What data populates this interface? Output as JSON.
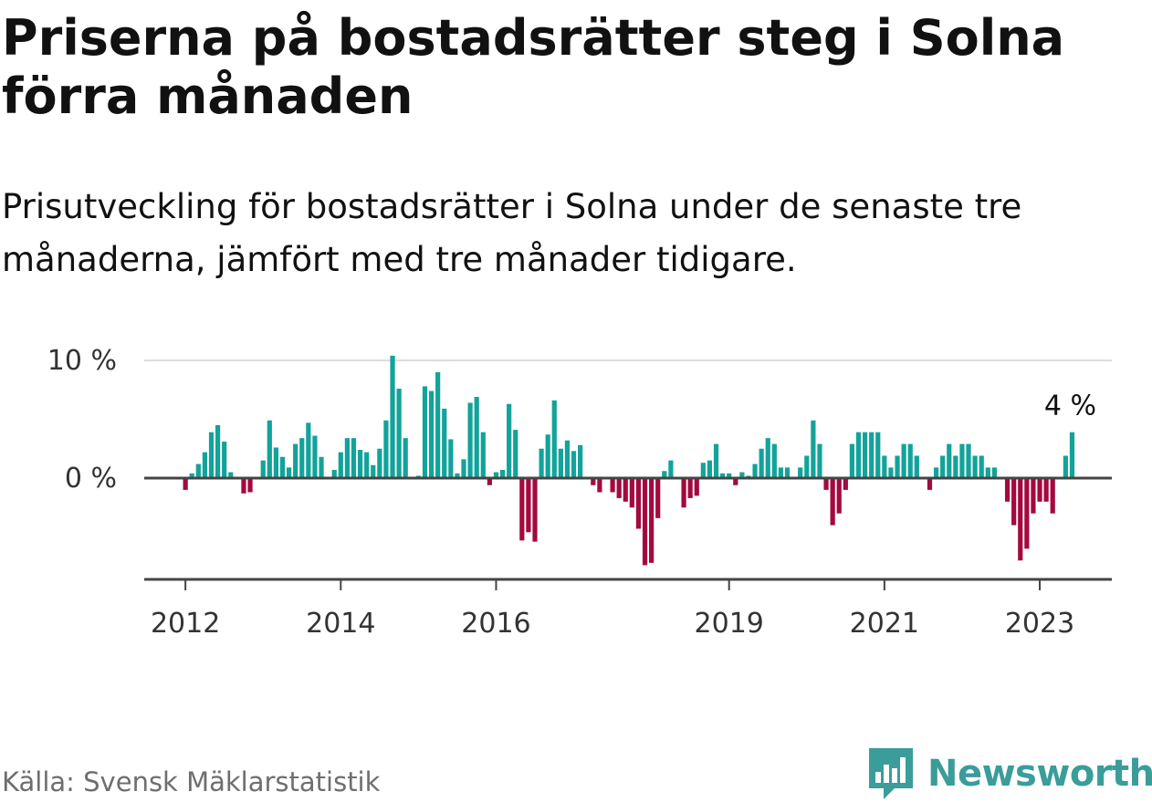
{
  "header": {
    "title": "Priserna på bostadsrätter steg i Solna förra månaden",
    "subtitle": "Prisutveckling för bostadsrätter i Solna under de senaste tre månaderna, jämfört med tre månader tidigare."
  },
  "footer": {
    "source": "Källa: Svensk Mäklarstatistik",
    "brand": "Newsworthy"
  },
  "colors": {
    "positive": "#12a39a",
    "negative": "#a3093f",
    "baseline": "#444444",
    "grid": "#dddddd"
  },
  "chart_data": {
    "type": "bar",
    "title": "Priserna på bostadsrätter steg i Solna förra månaden",
    "xlabel": "",
    "ylabel": "",
    "unit": "%",
    "ylim": [
      -8.5,
      10
    ],
    "yticks": [
      {
        "value": 0,
        "label": "0 %"
      },
      {
        "value": 10,
        "label": "10 %"
      }
    ],
    "start": {
      "year": 2011,
      "month": 7
    },
    "xticks": [
      {
        "year": 2012,
        "month": 1,
        "label": "2012"
      },
      {
        "year": 2014,
        "month": 1,
        "label": "2014"
      },
      {
        "year": 2016,
        "month": 1,
        "label": "2016"
      },
      {
        "year": 2019,
        "month": 1,
        "label": "2019"
      },
      {
        "year": 2021,
        "month": 1,
        "label": "2021"
      },
      {
        "year": 2023,
        "month": 1,
        "label": "2023"
      }
    ],
    "end_label": "4 %",
    "values": [
      0,
      0,
      0,
      0,
      0,
      0,
      -1.0,
      0.4,
      1.2,
      2.2,
      3.9,
      4.5,
      3.1,
      0.5,
      0,
      -1.3,
      -1.2,
      0,
      1.5,
      4.9,
      2.6,
      1.8,
      0.9,
      2.9,
      3.4,
      4.7,
      3.6,
      1.8,
      0,
      0.7,
      2.2,
      3.4,
      3.4,
      2.4,
      2.2,
      1.1,
      2.5,
      4.9,
      10.4,
      7.6,
      3.4,
      0,
      0.2,
      7.8,
      7.4,
      9.0,
      5.9,
      3.3,
      0.4,
      1.6,
      6.4,
      6.9,
      3.9,
      -0.6,
      0.5,
      0.7,
      6.3,
      4.1,
      -5.3,
      -4.6,
      -5.4,
      2.5,
      3.7,
      6.6,
      2.5,
      3.2,
      2.3,
      2.8,
      0,
      -0.6,
      -1.2,
      0.1,
      -1.2,
      -1.7,
      -2.0,
      -2.5,
      -4.3,
      -7.4,
      -7.2,
      -3.4,
      0.6,
      1.5,
      0,
      -2.5,
      -1.7,
      -1.5,
      1.3,
      1.5,
      2.9,
      0.4,
      0.4,
      -0.6,
      0.5,
      0.2,
      1.2,
      2.5,
      3.4,
      2.9,
      0.9,
      0.9,
      0,
      0.9,
      1.9,
      4.9,
      2.9,
      -1.0,
      -4.0,
      -3.0,
      -1.0,
      2.9,
      3.9,
      3.9,
      3.9,
      3.9,
      1.9,
      0.9,
      1.9,
      2.9,
      2.9,
      1.9,
      0,
      -1.0,
      0.9,
      1.9,
      2.9,
      1.9,
      2.9,
      2.9,
      1.9,
      1.9,
      0.9,
      0.9,
      0,
      -2.0,
      -4.0,
      -7.0,
      -6.0,
      -3.0,
      -2.0,
      -2.0,
      -3.0,
      0,
      1.9,
      3.9
    ]
  }
}
